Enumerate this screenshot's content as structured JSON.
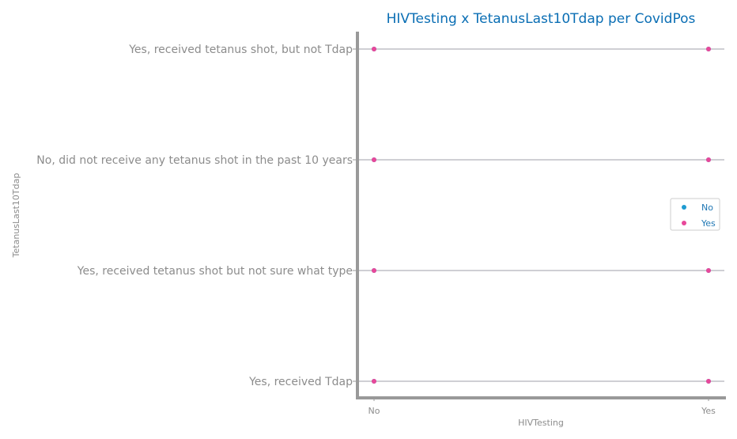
{
  "chart_data": {
    "type": "scatter",
    "title": "HIVTesting x TetanusLast10Tdap per CovidPos",
    "xlabel": "HIVTesting",
    "ylabel": "TetanusLast10Tdap",
    "x_categories": [
      "No",
      "Yes"
    ],
    "y_categories": [
      "Yes, received Tdap",
      "Yes, received tetanus shot but not sure what type",
      "No, did not receive any tetanus shot in the past 10 years",
      "Yes, received tetanus shot, but not Tdap"
    ],
    "legend_position": "center-right",
    "grid": "horizontal",
    "series": [
      {
        "name": "No",
        "color": "#1f9bd1",
        "points": [
          [
            "No",
            "Yes, received tetanus shot, but not Tdap"
          ],
          [
            "Yes",
            "Yes, received tetanus shot, but not Tdap"
          ],
          [
            "No",
            "No, did not receive any tetanus shot in the past 10 years"
          ],
          [
            "Yes",
            "No, did not receive any tetanus shot in the past 10 years"
          ],
          [
            "No",
            "Yes, received tetanus shot but not sure what type"
          ],
          [
            "Yes",
            "Yes, received tetanus shot but not sure what type"
          ],
          [
            "No",
            "Yes, received Tdap"
          ],
          [
            "Yes",
            "Yes, received Tdap"
          ]
        ]
      },
      {
        "name": "Yes",
        "color": "#e8489a",
        "points": [
          [
            "No",
            "Yes, received tetanus shot, but not Tdap"
          ],
          [
            "Yes",
            "Yes, received tetanus shot, but not Tdap"
          ],
          [
            "No",
            "No, did not receive any tetanus shot in the past 10 years"
          ],
          [
            "Yes",
            "No, did not receive any tetanus shot in the past 10 years"
          ],
          [
            "No",
            "Yes, received tetanus shot but not sure what type"
          ],
          [
            "Yes",
            "Yes, received tetanus shot but not sure what type"
          ],
          [
            "No",
            "Yes, received Tdap"
          ],
          [
            "Yes",
            "Yes, received Tdap"
          ]
        ]
      }
    ]
  }
}
